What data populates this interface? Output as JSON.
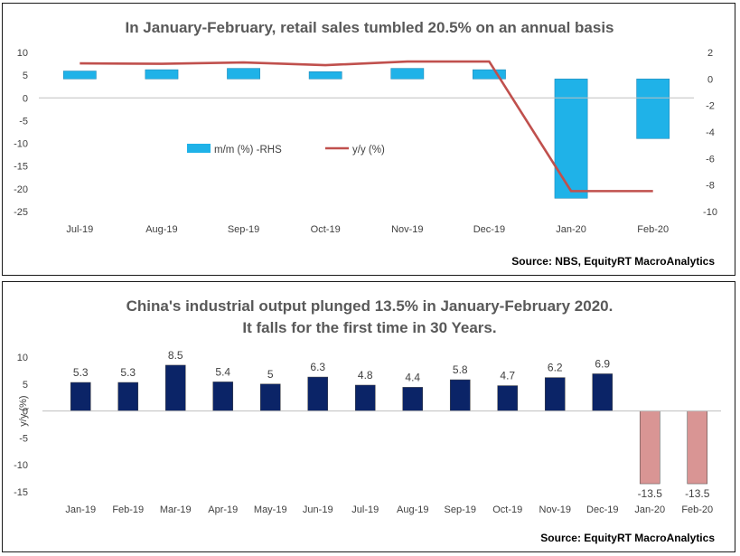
{
  "chart_data": [
    {
      "type": "bar+line",
      "title": "In January-February, retail sales tumbled 20.5% on an annual basis",
      "categories": [
        "Jul-19",
        "Aug-19",
        "Sep-19",
        "Oct-19",
        "Nov-19",
        "Dec-19",
        "Jan-20",
        "Feb-20"
      ],
      "series": [
        {
          "name": "m/m (%) -RHS",
          "type": "bar",
          "axis": "right",
          "color": "#1fb2e8",
          "values": [
            0.6,
            0.7,
            0.8,
            0.55,
            0.8,
            0.7,
            -9.0,
            -4.5
          ]
        },
        {
          "name": "y/y (%)",
          "type": "line",
          "axis": "left",
          "color": "#c0504d",
          "values": [
            7.6,
            7.5,
            7.8,
            7.2,
            8.0,
            8.0,
            -20.5,
            -20.5
          ]
        }
      ],
      "ylim_left": [
        -25,
        10
      ],
      "yticks_left": [
        10,
        5,
        0,
        -5,
        -10,
        -15,
        -20,
        -25
      ],
      "ylim_right": [
        -10,
        2
      ],
      "yticks_right": [
        2,
        0,
        -2,
        -4,
        -6,
        -8,
        -10
      ],
      "legend": "center",
      "source": "Source: NBS, EquityRT MacroAnalytics"
    },
    {
      "type": "bar",
      "title_line1": "China's industrial output plunged 13.5% in January-February 2020.",
      "title_line2": "It falls for the first time in 30 Years.",
      "categories": [
        "Jan-19",
        "Feb-19",
        "Mar-19",
        "Apr-19",
        "May-19",
        "Jun-19",
        "Jul-19",
        "Aug-19",
        "Sep-19",
        "Oct-19",
        "Nov-19",
        "Dec-19",
        "Jan-20",
        "Feb-20"
      ],
      "values": [
        5.3,
        5.3,
        8.5,
        5.4,
        5.0,
        6.3,
        4.8,
        4.4,
        5.8,
        4.7,
        6.2,
        6.9,
        -13.5,
        -13.5
      ],
      "labels": [
        "5.3",
        "5.3",
        "8.5",
        "5.4",
        "5",
        "6.3",
        "4.8",
        "4.4",
        "5.8",
        "4.7",
        "6.2",
        "6.9",
        "-13.5",
        "-13.5"
      ],
      "colors": {
        "positive": "#0b2467",
        "negative": "#d99594"
      },
      "ylabel": "y/y (%)",
      "ylim": [
        -15,
        10
      ],
      "yticks": [
        10,
        5,
        0,
        -5,
        -10,
        -15
      ],
      "source": "Source: EquityRT MacroAnalytics"
    }
  ]
}
